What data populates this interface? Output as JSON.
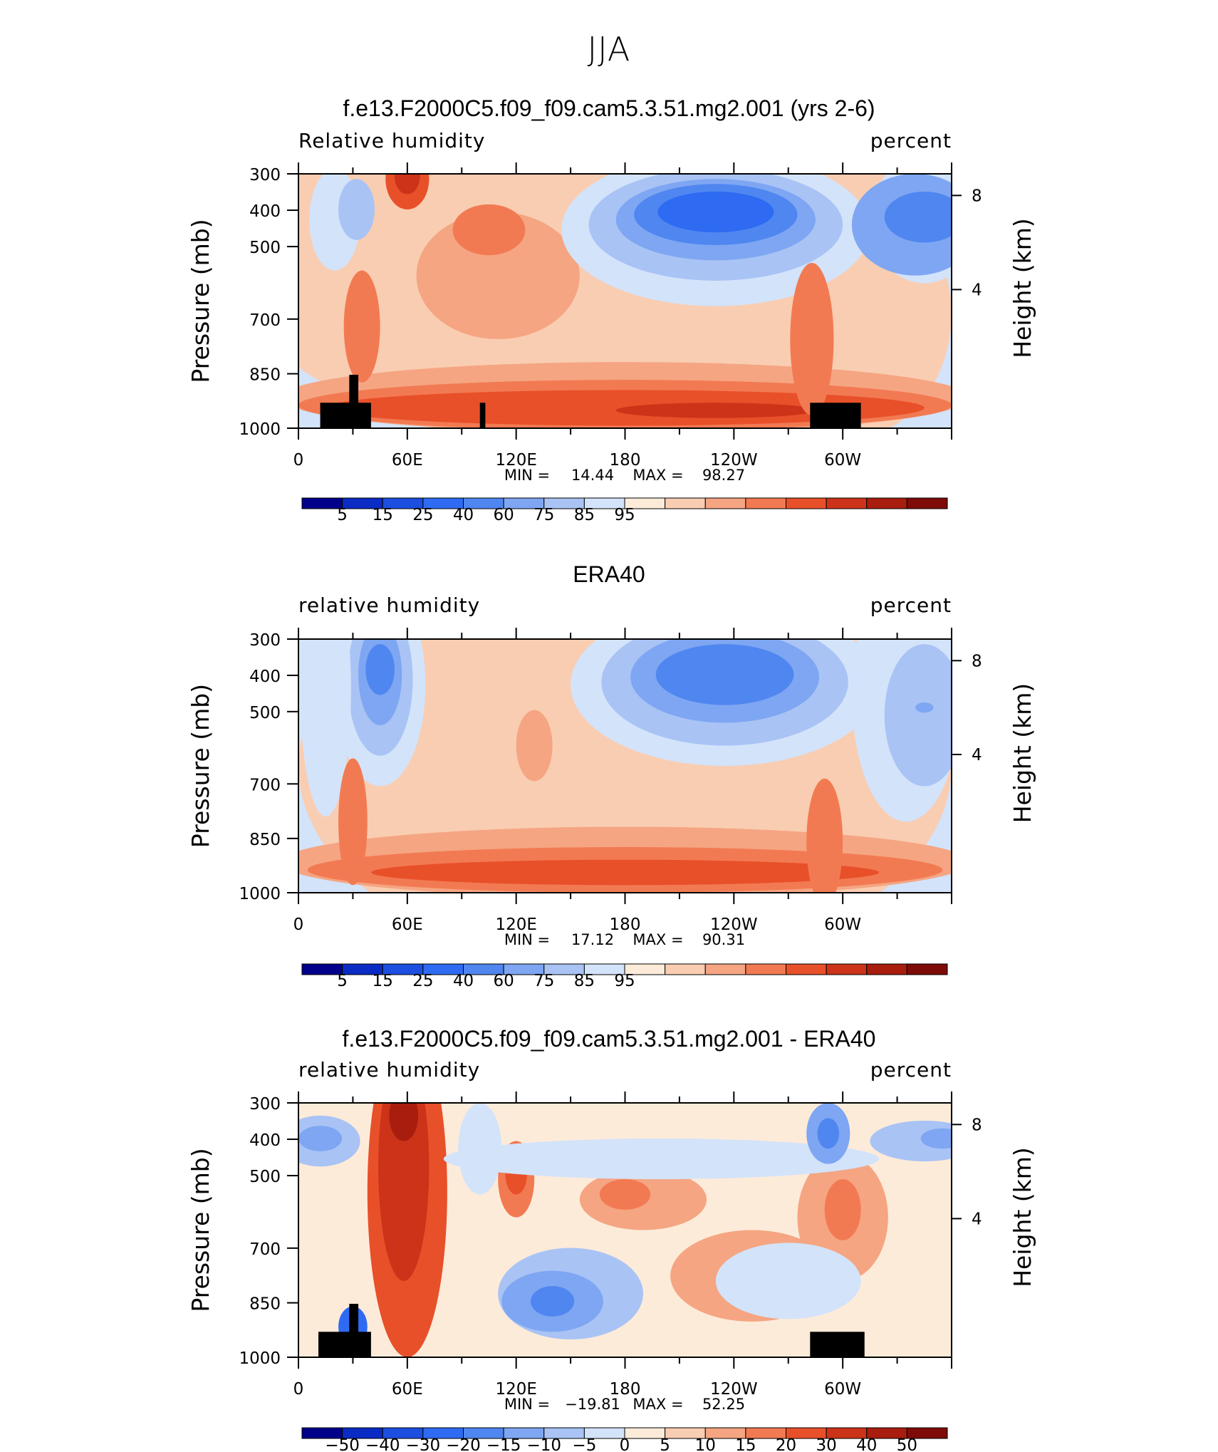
{
  "page_title": "JJA",
  "chart_data": [
    {
      "type": "heatmap",
      "title": "f.e13.F2000C5.f09_f09.cam5.3.51.mg2.001 (yrs 2-6)",
      "left_label": "Relative humidity",
      "right_label": "percent",
      "ylabel": "Pressure (mb)",
      "ylabel_right": "Height (km)",
      "yticks": [
        "300",
        "400",
        "500",
        "700",
        "850",
        "1000"
      ],
      "yticks_right": [
        "8",
        "4"
      ],
      "xticks": [
        "0",
        "60E",
        "120E",
        "180",
        "120W",
        "60W"
      ],
      "ylim": [
        1000,
        300
      ],
      "stats": {
        "min_label": "MIN =",
        "min": "14.44",
        "max_label": "MAX =",
        "max": "98.27"
      },
      "colorbar": {
        "labels": [
          "5",
          "15",
          "25",
          "40",
          "60",
          "75",
          "85",
          "95"
        ]
      }
    },
    {
      "type": "heatmap",
      "title": "ERA40",
      "left_label": "relative humidity",
      "right_label": "percent",
      "ylabel": "Pressure (mb)",
      "ylabel_right": "Height (km)",
      "yticks": [
        "300",
        "400",
        "500",
        "700",
        "850",
        "1000"
      ],
      "yticks_right": [
        "8",
        "4"
      ],
      "xticks": [
        "0",
        "60E",
        "120E",
        "180",
        "120W",
        "60W"
      ],
      "ylim": [
        1000,
        300
      ],
      "stats": {
        "min_label": "MIN =",
        "min": "17.12",
        "max_label": "MAX =",
        "max": "90.31"
      },
      "colorbar": {
        "labels": [
          "5",
          "15",
          "25",
          "40",
          "60",
          "75",
          "85",
          "95"
        ]
      }
    },
    {
      "type": "heatmap",
      "title": "f.e13.F2000C5.f09_f09.cam5.3.51.mg2.001 - ERA40",
      "left_label": "relative humidity",
      "right_label": "percent",
      "ylabel": "Pressure (mb)",
      "ylabel_right": "Height (km)",
      "yticks": [
        "300",
        "400",
        "500",
        "700",
        "850",
        "1000"
      ],
      "yticks_right": [
        "8",
        "4"
      ],
      "xticks": [
        "0",
        "60E",
        "120E",
        "180",
        "120W",
        "60W"
      ],
      "ylim": [
        1000,
        300
      ],
      "stats": {
        "min_label": "MIN =",
        "min": "−19.81",
        "max_label": "MAX =",
        "max": "52.25"
      },
      "colorbar": {
        "labels": [
          "−50",
          "−40",
          "−30",
          "−20",
          "−15",
          "−10",
          "−5",
          "0",
          "5",
          "10",
          "15",
          "20",
          "30",
          "40",
          "50"
        ]
      }
    }
  ],
  "colors": {
    "rh_scale": [
      "#00008b",
      "#0a2bc4",
      "#1c4ee0",
      "#2e6bf2",
      "#4f86f0",
      "#7ea6f2",
      "#a9c3f5",
      "#d3e3fa",
      "#fdebd9",
      "#f9cdb2",
      "#f5a582",
      "#f27a52",
      "#e8502a",
      "#cc3318",
      "#a81d0e",
      "#7e0b08"
    ],
    "diff_scale": [
      "#00008b",
      "#0a2bc4",
      "#1c4ee0",
      "#2e6bf2",
      "#4f86f0",
      "#7ea6f2",
      "#a9c3f5",
      "#d3e3fa",
      "#fdebd9",
      "#f9cdb2",
      "#f5a582",
      "#f27a52",
      "#e8502a",
      "#cc3318",
      "#a81d0e",
      "#7e0b08"
    ],
    "topography": "#000000"
  }
}
